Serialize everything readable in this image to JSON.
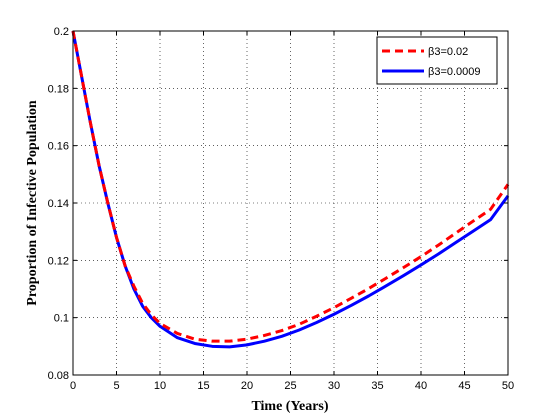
{
  "chart_data": {
    "type": "line",
    "title": "",
    "xlabel": "Time (Years)",
    "ylabel": "Proportion of Infective Population",
    "xlim": [
      0,
      50
    ],
    "ylim": [
      0.08,
      0.2
    ],
    "x_ticks": [
      0,
      5,
      10,
      15,
      20,
      25,
      30,
      35,
      40,
      45,
      50
    ],
    "x_tick_labels": [
      "0",
      "5",
      "10",
      "15",
      "20",
      "25",
      "30",
      "35",
      "40",
      "45",
      "50"
    ],
    "y_ticks": [
      0.08,
      0.1,
      0.12,
      0.14,
      0.16,
      0.18,
      0.2
    ],
    "y_tick_labels": [
      "0.08",
      "0.1",
      "0.12",
      "0.14",
      "0.16",
      "0.18",
      "0.2"
    ],
    "grid": true,
    "grid_style": "dotted",
    "legend_position": "top-right",
    "series": [
      {
        "name": "β3=0.02",
        "color": "#ff0000",
        "line_style": "dashed",
        "x": [
          0,
          1,
          2,
          3,
          4,
          5,
          6,
          7,
          8,
          9,
          10,
          12,
          14,
          16,
          18,
          20,
          22,
          24,
          26,
          28,
          30,
          32,
          34,
          36,
          38,
          40,
          42,
          44,
          46,
          48,
          50
        ],
        "y": [
          0.2,
          0.184,
          0.168,
          0.153,
          0.14,
          0.128,
          0.118,
          0.111,
          0.105,
          0.101,
          0.098,
          0.0945,
          0.0925,
          0.0918,
          0.0918,
          0.0925,
          0.0938,
          0.0955,
          0.0977,
          0.1005,
          0.1035,
          0.1068,
          0.1102,
          0.1138,
          0.1175,
          0.1213,
          0.1253,
          0.1295,
          0.1337,
          0.1378,
          0.1465
        ]
      },
      {
        "name": "β3=0.0009",
        "color": "#0000ff",
        "line_style": "solid",
        "x": [
          0,
          1,
          2,
          3,
          4,
          5,
          6,
          7,
          8,
          9,
          10,
          12,
          14,
          16,
          18,
          20,
          22,
          24,
          26,
          28,
          30,
          32,
          34,
          36,
          38,
          40,
          42,
          44,
          46,
          48,
          50
        ],
        "y": [
          0.2,
          0.184,
          0.168,
          0.153,
          0.14,
          0.128,
          0.118,
          0.11,
          0.104,
          0.1,
          0.097,
          0.093,
          0.091,
          0.09,
          0.0898,
          0.0905,
          0.0918,
          0.0935,
          0.0957,
          0.0983,
          0.1012,
          0.1043,
          0.1076,
          0.1111,
          0.1147,
          0.1184,
          0.1222,
          0.1262,
          0.1302,
          0.1342,
          0.1425
        ]
      }
    ]
  }
}
